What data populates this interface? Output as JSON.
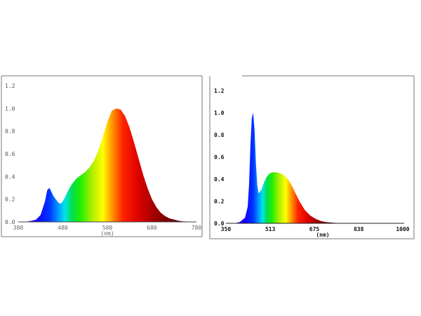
{
  "chart_data": [
    {
      "type": "area",
      "title": "",
      "xlabel": "(nm)",
      "ylabel": "",
      "xlim": [
        380,
        780
      ],
      "ylim": [
        0,
        1.2
      ],
      "x_ticks": [
        "380",
        "480",
        "580",
        "680",
        "780"
      ],
      "y_ticks": [
        "0.0",
        "0.2",
        "0.4",
        "0.6",
        "0.8",
        "1.0",
        "1.2"
      ],
      "grid": false,
      "fill": "visible-spectrum gradient",
      "series": [
        {
          "x": [
            380,
            395,
            410,
            420,
            430,
            440,
            445,
            450,
            455,
            460,
            470,
            475,
            480,
            490,
            500,
            510,
            520,
            530,
            540,
            550,
            560,
            570,
            580,
            590,
            600,
            610,
            620,
            630,
            640,
            650,
            660,
            670,
            680,
            690,
            700,
            710,
            720,
            730,
            740,
            750,
            760,
            770,
            780
          ],
          "values": [
            0.0,
            0.0,
            0.01,
            0.02,
            0.06,
            0.18,
            0.28,
            0.3,
            0.26,
            0.22,
            0.17,
            0.16,
            0.18,
            0.26,
            0.33,
            0.38,
            0.41,
            0.44,
            0.48,
            0.54,
            0.63,
            0.75,
            0.88,
            0.98,
            1.0,
            0.99,
            0.93,
            0.83,
            0.7,
            0.56,
            0.42,
            0.3,
            0.2,
            0.13,
            0.08,
            0.05,
            0.03,
            0.02,
            0.01,
            0.005,
            0.003,
            0.002,
            0.0
          ]
        }
      ]
    },
    {
      "type": "area",
      "title": "",
      "xlabel": "(nm)",
      "ylabel": "",
      "xlim": [
        350,
        1000
      ],
      "ylim": [
        0,
        1.2
      ],
      "x_ticks": [
        "350",
        "513",
        "675",
        "838",
        "1000"
      ],
      "y_ticks": [
        "0.0",
        "0.2",
        "0.4",
        "0.6",
        "0.8",
        "1.0",
        "1.2"
      ],
      "grid": false,
      "fill": "visible-spectrum gradient",
      "series": [
        {
          "x": [
            350,
            380,
            400,
            420,
            430,
            435,
            440,
            445,
            450,
            455,
            460,
            465,
            470,
            480,
            490,
            500,
            510,
            520,
            530,
            540,
            550,
            560,
            570,
            580,
            590,
            600,
            610,
            620,
            640,
            660,
            680,
            700,
            720,
            750,
            800,
            900,
            1000
          ],
          "values": [
            0.0,
            0.0,
            0.01,
            0.05,
            0.15,
            0.35,
            0.7,
            0.95,
            1.0,
            0.85,
            0.55,
            0.35,
            0.27,
            0.3,
            0.37,
            0.42,
            0.45,
            0.46,
            0.46,
            0.46,
            0.45,
            0.44,
            0.42,
            0.39,
            0.35,
            0.3,
            0.25,
            0.2,
            0.12,
            0.07,
            0.04,
            0.02,
            0.01,
            0.004,
            0.001,
            0.0,
            0.0
          ]
        }
      ]
    }
  ]
}
